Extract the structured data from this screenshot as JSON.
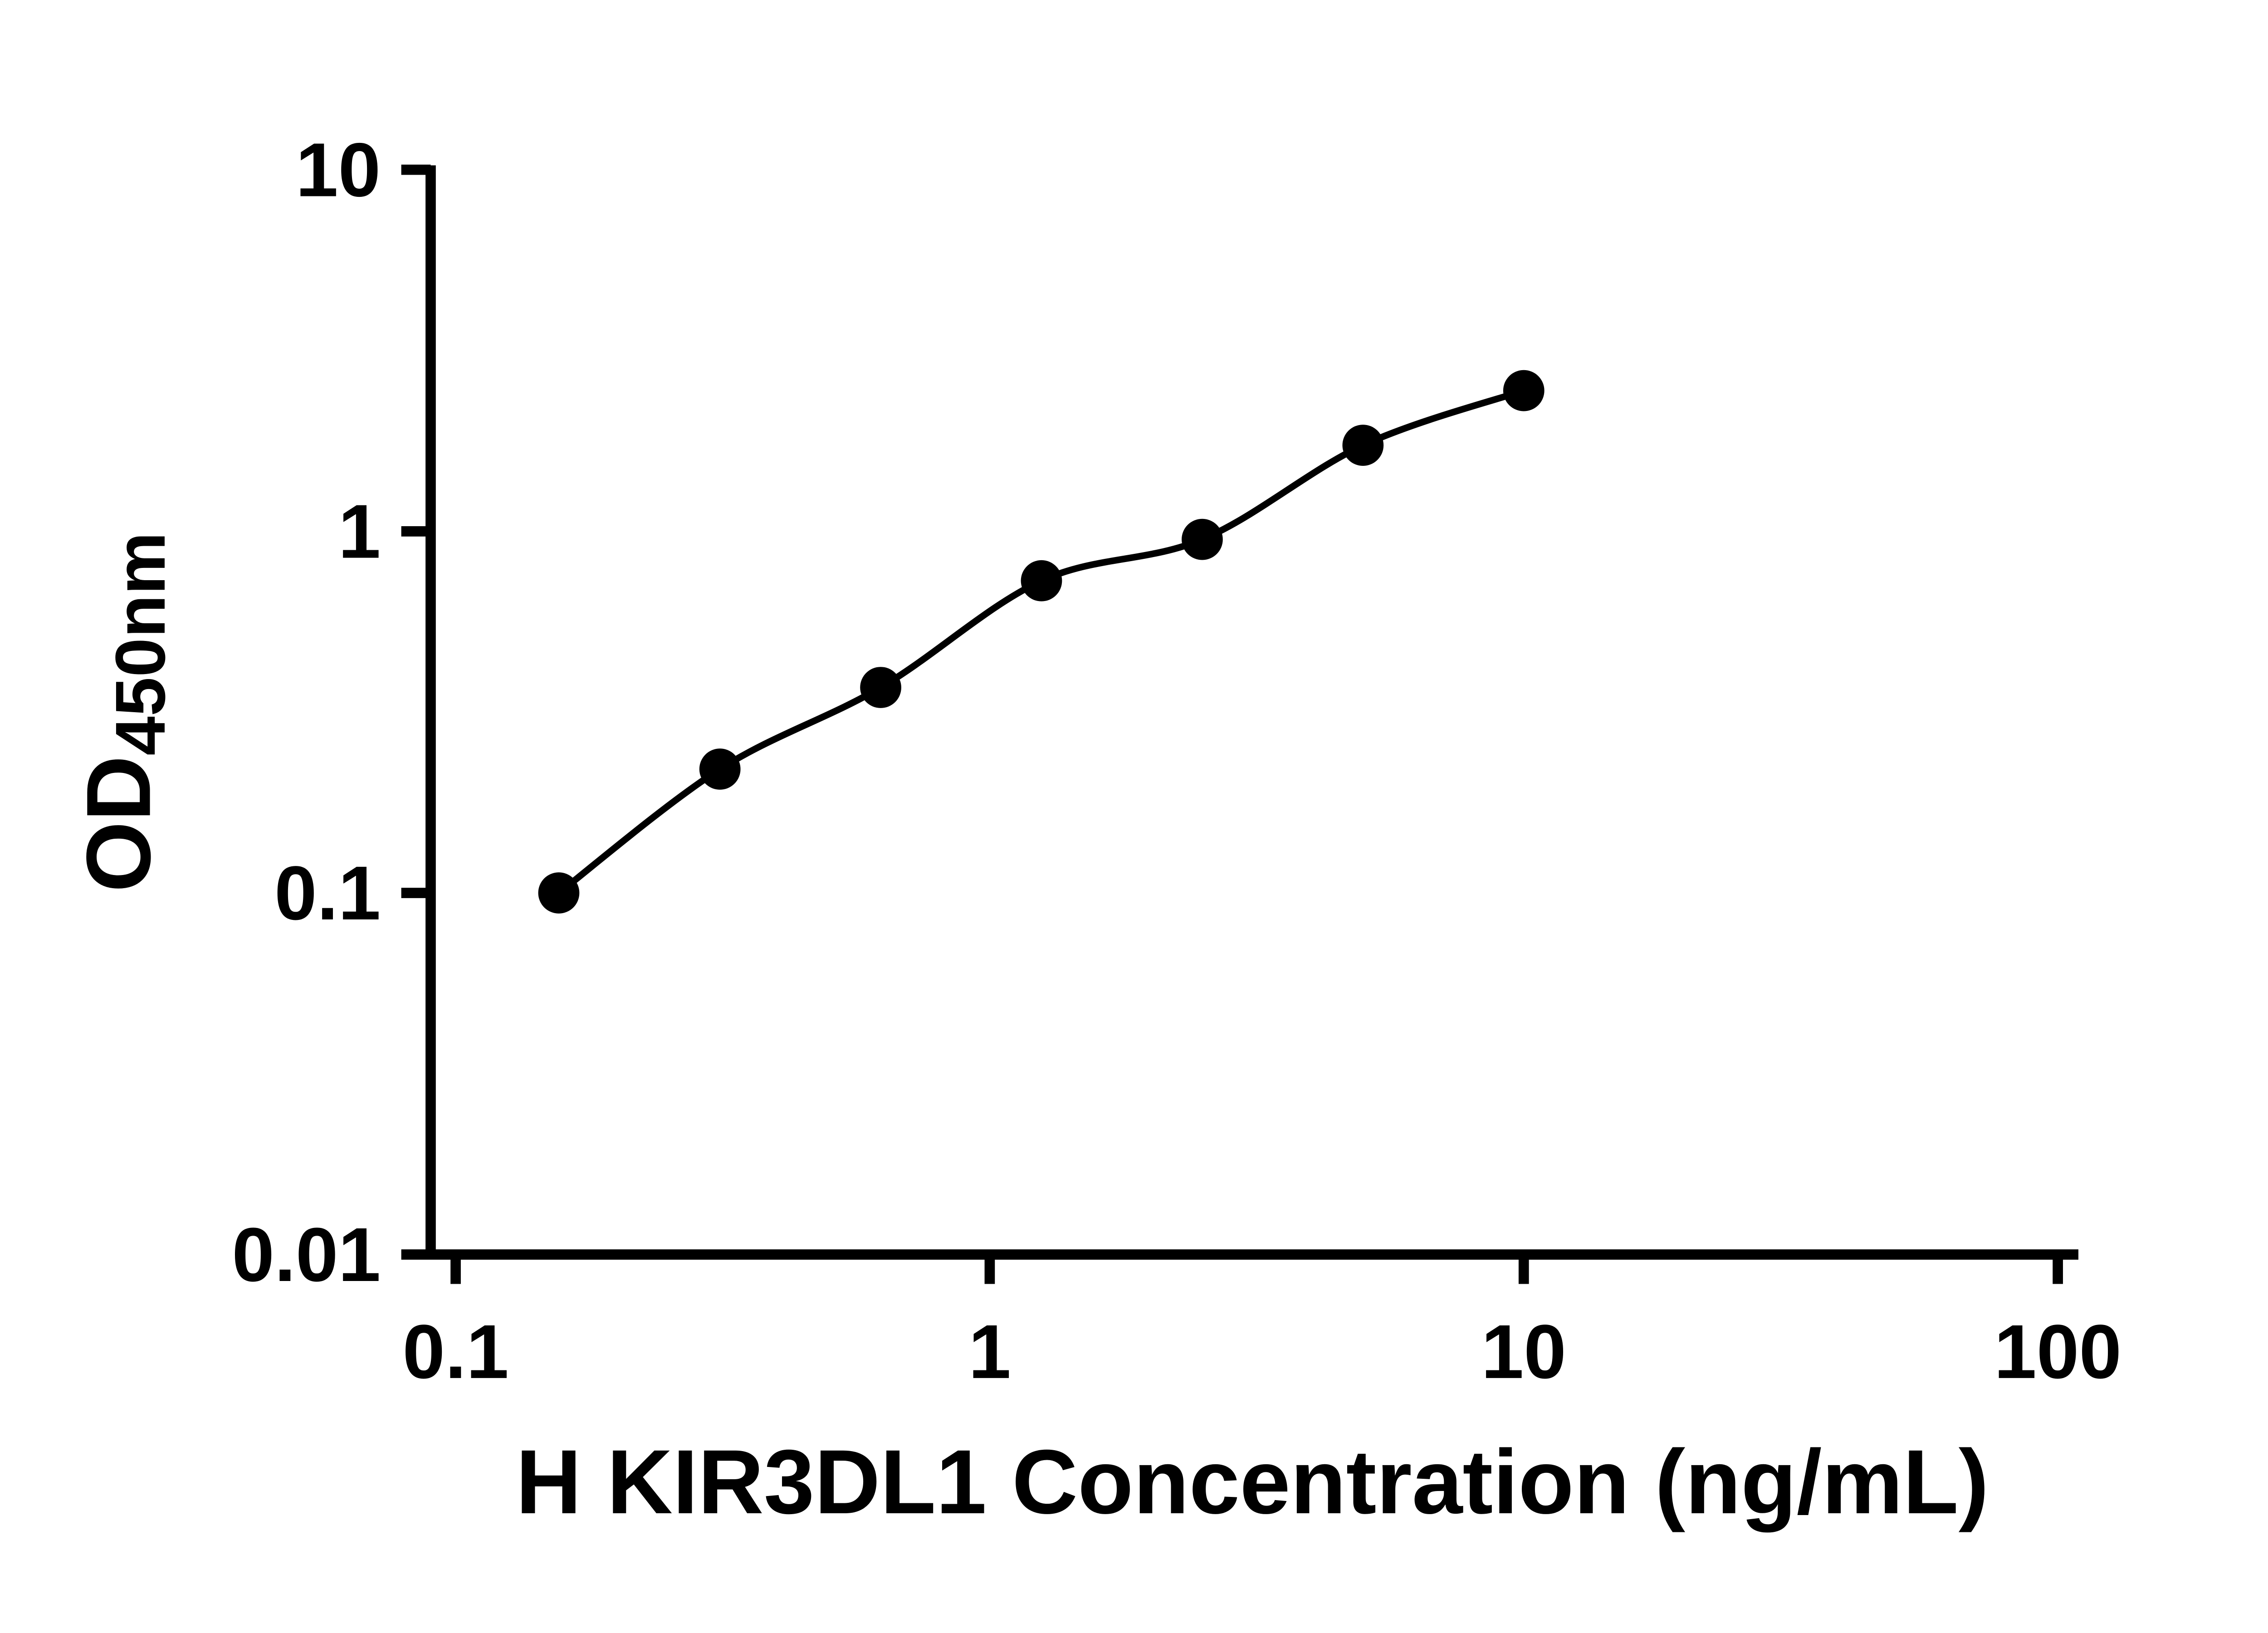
{
  "figure": {
    "background_color": "#ffffff",
    "ink_color": "#000000"
  },
  "chart_data": {
    "type": "scatter",
    "title": "",
    "xlabel": "H KIR3DL1 Concentration (ng/mL)",
    "ylabel": "OD450nm",
    "ylabel_main": "OD",
    "ylabel_sub": "450nm",
    "x_scale": "log10",
    "y_scale": "log10",
    "xlim": [
      0.1,
      100
    ],
    "ylim": [
      0.01,
      10
    ],
    "grid": false,
    "legend": "none",
    "x_tick_values": [
      0.1,
      1,
      10,
      100
    ],
    "x_tick_labels": [
      "0.1",
      "1",
      "10",
      "100"
    ],
    "y_tick_values": [
      10,
      1,
      0.1,
      0.01
    ],
    "y_tick_labels": [
      "10",
      "1",
      "0.1",
      "0.01"
    ],
    "marker": {
      "shape": "circle",
      "color": "#000000"
    },
    "fit_line": true,
    "series": [
      {
        "points": [
          {
            "x": 0.156,
            "y": 0.1
          },
          {
            "x": 0.3125,
            "y": 0.22
          },
          {
            "x": 0.625,
            "y": 0.37
          },
          {
            "x": 1.25,
            "y": 0.73
          },
          {
            "x": 2.5,
            "y": 0.95
          },
          {
            "x": 5,
            "y": 1.73
          },
          {
            "x": 10,
            "y": 2.45
          }
        ]
      }
    ]
  }
}
